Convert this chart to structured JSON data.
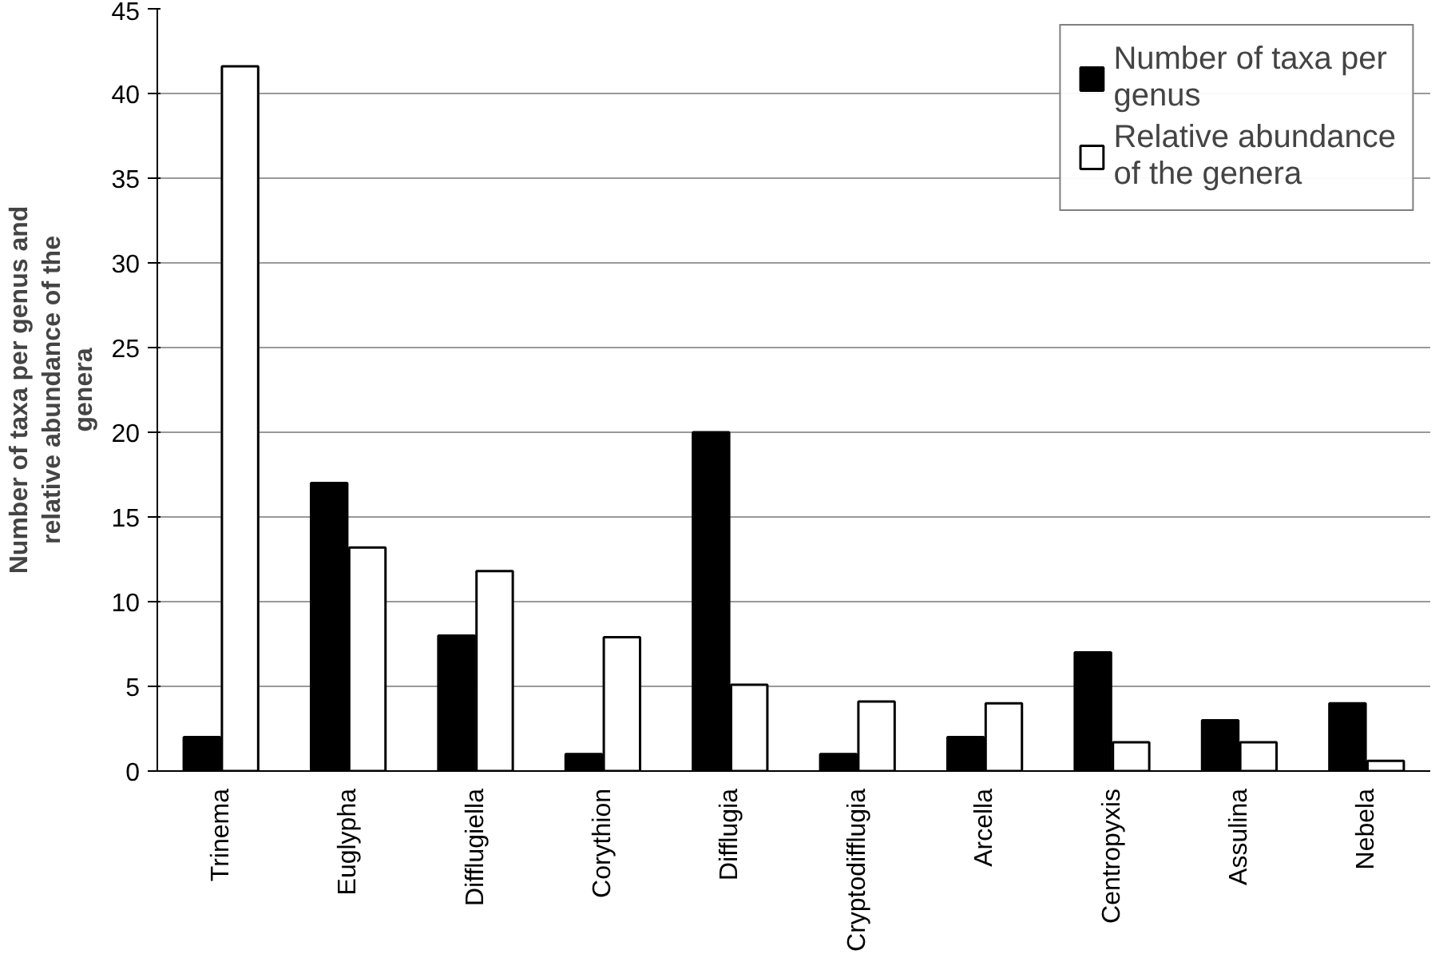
{
  "chart_data": {
    "type": "bar",
    "ylabel": "Number of taxa per genus and relative abundance of the genera",
    "categories": [
      "Trinema",
      "Euglypha",
      "Difflugiella",
      "Corythion",
      "Difflugia",
      "Cryptodifflugia",
      "Arcella",
      "Centropyxis",
      "Assulina",
      "Nebela"
    ],
    "series": [
      {
        "name": "Number of taxa per genus",
        "color": "#000000",
        "values": [
          2,
          17,
          8,
          1,
          20,
          1,
          2,
          7,
          3,
          4
        ]
      },
      {
        "name": "Relative abundance of the genera",
        "color": "#ffffff",
        "values": [
          41.6,
          13.2,
          11.8,
          7.9,
          5.1,
          4.1,
          4.0,
          1.7,
          1.7,
          0.6
        ]
      }
    ],
    "ylim": [
      0,
      45
    ],
    "yticks": [
      0,
      5,
      10,
      15,
      20,
      25,
      30,
      35,
      40,
      45
    ],
    "grid": "y",
    "legend": "top right"
  }
}
